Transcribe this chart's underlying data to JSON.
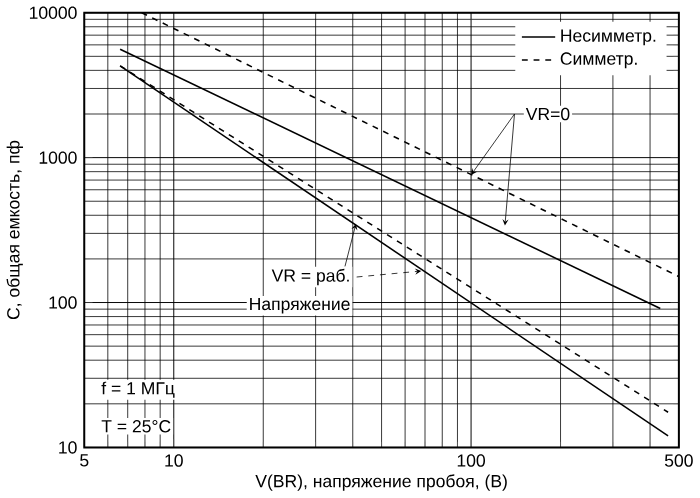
{
  "chart_data": {
    "type": "line",
    "log": "xy",
    "grid": true,
    "legend": "top right",
    "marker": "none",
    "xlabel": "V(BR), напряжение пробоя, (В)",
    "ylabel": "C, общая емкость, пф",
    "xlim": [
      5,
      500
    ],
    "ylim": [
      10,
      10000
    ],
    "xticks": [
      5,
      10,
      100,
      500
    ],
    "yticks": [
      10,
      100,
      1000,
      10000
    ],
    "series": [
      {
        "name": "Несимметр.",
        "color": "#000000",
        "line_style": "solid",
        "x": [
          6.6,
          433
        ],
        "values": [
          5600,
          91
        ]
      },
      {
        "name": "Симметр.",
        "color": "#000000",
        "line_style": "dashed",
        "x": [
          7.8,
          500
        ],
        "values": [
          10000,
          151
        ]
      },
      {
        "color": "#000000",
        "line_style": "solid",
        "x": [
          6.6,
          460
        ],
        "values": [
          4300,
          12
        ]
      },
      {
        "color": "#000000",
        "line_style": "dashed",
        "x": [
          6.6,
          460
        ],
        "values": [
          4300,
          17.5
        ]
      }
    ],
    "annotations": [
      {
        "text": "VR=0",
        "x": 100,
        "y": 760
      },
      {
        "text": "VR = раб.",
        "x": 41,
        "y": 350
      },
      "Напряжение",
      "f = 1 МГц",
      "T = 25°C"
    ]
  }
}
